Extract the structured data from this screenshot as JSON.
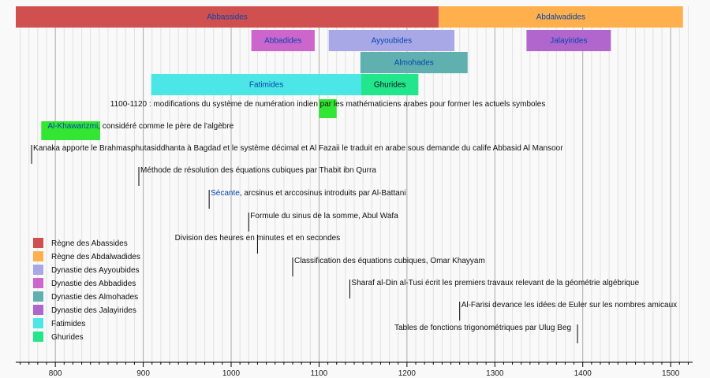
{
  "chart_data": {
    "type": "timeline",
    "x_range": [
      755,
      1525
    ],
    "axis": {
      "major_ticks": [
        800,
        900,
        1000,
        1100,
        1200,
        1300,
        1400,
        1500
      ],
      "minor_step": 10
    },
    "periods": [
      {
        "key": "abbassides",
        "label": "Abbassides",
        "start": 750,
        "end": 1236,
        "lane": 0,
        "color": "#d05050",
        "link": true
      },
      {
        "key": "abdalwadides",
        "label": "Abdalwadides",
        "start": 1236,
        "end": 1514,
        "lane": 0,
        "color": "#ffb04d",
        "link": true
      },
      {
        "key": "abbadides",
        "label": "Abbadides",
        "start": 1023,
        "end": 1095,
        "lane": 1,
        "color": "#cc66cc",
        "link": true
      },
      {
        "key": "ayyoubides",
        "label": "Ayyoubides",
        "start": 1111,
        "end": 1254,
        "lane": 1,
        "color": "#a8a8e6",
        "link": true
      },
      {
        "key": "jalayirides",
        "label": "Jalayirides",
        "start": 1336,
        "end": 1432,
        "lane": 1,
        "color": "#b066cc",
        "link": true
      },
      {
        "key": "almohades",
        "label": "Almohades",
        "start": 1147,
        "end": 1269,
        "lane": 2,
        "color": "#60b0b0",
        "link": true
      },
      {
        "key": "fatimides",
        "label": "Fatimides",
        "start": 909,
        "end": 1171,
        "lane": 3,
        "color": "#4ce6e6",
        "link": true
      },
      {
        "key": "ghurides",
        "label": "Ghurides",
        "start": 1148,
        "end": 1213,
        "lane": 3,
        "color": "#22e68c",
        "link": false
      }
    ],
    "events": [
      {
        "year": 1110,
        "label": "1100-1120 : modifications du système de numération indien par les mathématiciens arabes pour former les actuels symboles",
        "highlight": {
          "start": 1100,
          "end": 1120,
          "color": "#33e633"
        }
      },
      {
        "year": 790,
        "link_text": "Al-Khawarizmi",
        "label": ", considéré comme le père de l'algèbre",
        "highlight": {
          "start": 784,
          "end": 851,
          "color": "#33e633"
        }
      },
      {
        "year": 773,
        "label": "Kanaka apporte le Brahmasphutasiddhanta à Bagdad et le système décimal et Al Fazaii le traduit en arabe sous demande du calife Abbasid Al Mansoor"
      },
      {
        "year": 895,
        "label": "Méthode de résolution des équations cubiques par Thabit ibn Qurra"
      },
      {
        "year": 975,
        "link_text": "Sécante",
        "label": ", arcsinus et arccosinus introduits par Al-Battani"
      },
      {
        "year": 1020,
        "label": "Formule du sinus de la somme, Abul Wafa"
      },
      {
        "year": 1030,
        "label": "Division des heures en minutes et en secondes",
        "align": "center"
      },
      {
        "year": 1070,
        "label": "Classification des équations cubiques, Omar Khayyam"
      },
      {
        "year": 1135,
        "label": "Sharaf al-Din al-Tusi écrit les premiers travaux relevant de la géométrie algébrique"
      },
      {
        "year": 1260,
        "label": "Al-Farisi devance les idées de Euler sur les nombres amicaux"
      },
      {
        "year": 1394,
        "label": "Tables de fonctions trigonométriques par Ulug Beg",
        "align": "right"
      }
    ],
    "legend": {
      "placement": "bottom-left",
      "items": [
        {
          "label": "Règne des Abassides",
          "color": "#d05050"
        },
        {
          "label": "Règne des Abdalwadides",
          "color": "#ffb04d"
        },
        {
          "label": "Dynastie des Ayyoubides",
          "color": "#a8a8e6"
        },
        {
          "label": "Dynastie des Abbadides",
          "color": "#cc66cc"
        },
        {
          "label": "Dynastie des Almohades",
          "color": "#60b0b0"
        },
        {
          "label": "Dynastie des Jalayirides",
          "color": "#b066cc"
        },
        {
          "label": "Fatimides",
          "color": "#4ce6e6"
        },
        {
          "label": "Ghurides",
          "color": "#22e68c"
        }
      ]
    },
    "colors": {
      "link": "#0645ad",
      "grid_major": "#aaaaaa",
      "grid_minor": "#e2e2e2",
      "axis": "#000000",
      "background": "#f9f9f9"
    }
  }
}
